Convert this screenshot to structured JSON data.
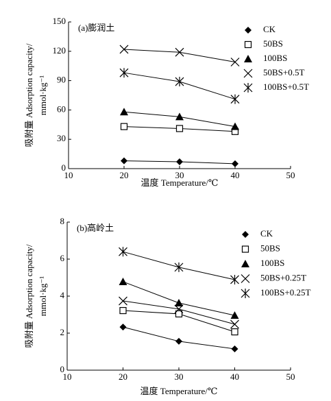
{
  "chart_data": [
    {
      "type": "line",
      "title": "(a)膨润土",
      "ylabel": [
        "吸附量 Adsorption capacity/",
        "mmol·kg⁻¹"
      ],
      "xlabel": "温度 Temperature/℃",
      "x": [
        20,
        30,
        40
      ],
      "xlim": [
        10,
        50
      ],
      "xticks": [
        10,
        20,
        30,
        40,
        50
      ],
      "ylim": [
        0,
        150
      ],
      "yticks": [
        0,
        30,
        60,
        90,
        120,
        150
      ],
      "legend": "upper right",
      "series": [
        {
          "name": "CK",
          "color": "#000000",
          "marker": "diamond",
          "values": [
            8,
            7,
            5
          ]
        },
        {
          "name": "50BS",
          "color": "#000000",
          "marker": "square",
          "values": [
            43,
            41,
            38
          ]
        },
        {
          "name": "100BS",
          "color": "#000000",
          "marker": "triangle",
          "values": [
            58,
            53,
            43
          ]
        },
        {
          "name": "50BS+0.5T",
          "color": "#000000",
          "marker": "x",
          "values": [
            122,
            119,
            109
          ]
        },
        {
          "name": "100BS+0.5T",
          "color": "#000000",
          "marker": "asterisk",
          "values": [
            98,
            89,
            71
          ]
        }
      ]
    },
    {
      "type": "line",
      "title": "(b)高岭土",
      "ylabel": [
        "吸附量 Adsorption capacity/",
        "mmol·kg⁻¹"
      ],
      "xlabel": "温度 Temperature/℃",
      "x": [
        20,
        30,
        40
      ],
      "xlim": [
        10,
        50
      ],
      "xticks": [
        10,
        20,
        30,
        40,
        50
      ],
      "ylim": [
        0,
        8
      ],
      "yticks": [
        0,
        2,
        4,
        6,
        8
      ],
      "legend": "upper right",
      "series": [
        {
          "name": "CK",
          "color": "#000000",
          "marker": "diamond",
          "values": [
            2.33,
            1.56,
            1.15
          ]
        },
        {
          "name": "50BS",
          "color": "#000000",
          "marker": "square",
          "values": [
            3.22,
            3.04,
            2.07
          ]
        },
        {
          "name": "100BS",
          "color": "#000000",
          "marker": "triangle",
          "values": [
            4.78,
            3.63,
            2.96
          ]
        },
        {
          "name": "50BS+0.25T",
          "color": "#000000",
          "marker": "x",
          "values": [
            3.74,
            3.3,
            2.48
          ]
        },
        {
          "name": "100BS+0.25T",
          "color": "#000000",
          "marker": "asterisk",
          "values": [
            6.4,
            5.56,
            4.89
          ]
        }
      ]
    }
  ]
}
